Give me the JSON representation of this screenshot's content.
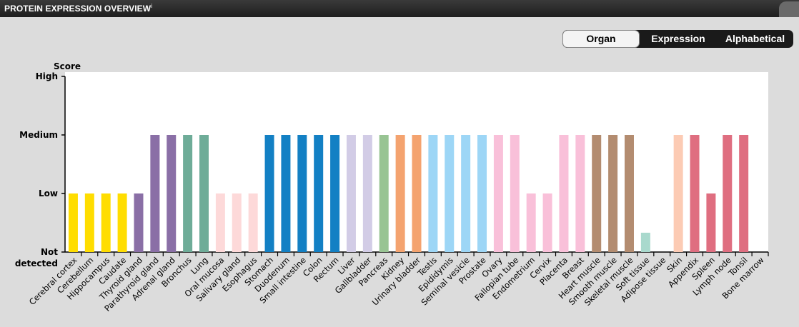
{
  "header": {
    "title": "PROTEIN EXPRESSION OVERVIEW",
    "info_mark": "i"
  },
  "sort_buttons": [
    {
      "label": "Organ",
      "active": true
    },
    {
      "label": "Expression",
      "active": false
    },
    {
      "label": "Alphabetical",
      "active": false
    }
  ],
  "colors": {
    "header_bg": "#262626",
    "page_bg": "#dcdcdc",
    "plot_bg": "#ffffff"
  },
  "chart_data": {
    "type": "bar",
    "title": "",
    "ylabel": "Score",
    "xlabel": "",
    "ytick_labels": [
      "Not detected",
      "Low",
      "Medium",
      "High"
    ],
    "ylim": [
      0,
      3
    ],
    "grid": false,
    "categories": [
      "Cerebral cortex",
      "Cerebellum",
      "Hippocampus",
      "Caudate",
      "Thyroid gland",
      "Parathyroid gland",
      "Adrenal gland",
      "Bronchus",
      "Lung",
      "Oral mucosa",
      "Salivary gland",
      "Esophagus",
      "Stomach",
      "Duodenum",
      "Small intestine",
      "Colon",
      "Rectum",
      "Liver",
      "Gallbladder",
      "Pancreas",
      "Kidney",
      "Urinary bladder",
      "Testis",
      "Epididymis",
      "Seminal vesicle",
      "Prostate",
      "Ovary",
      "Fallopian tube",
      "Endometrium",
      "Cervix",
      "Placenta",
      "Breast",
      "Heart muscle",
      "Smooth muscle",
      "Skeletal muscle",
      "Soft tissue",
      "Adipose tissue",
      "Skin",
      "Appendix",
      "Spleen",
      "Lymph node",
      "Tonsil",
      "Bone marrow"
    ],
    "values": [
      1,
      1,
      1,
      1,
      1,
      2,
      2,
      2,
      2,
      1,
      1,
      1,
      2,
      2,
      2,
      2,
      2,
      2,
      2,
      2,
      2,
      2,
      2,
      2,
      2,
      2,
      2,
      2,
      1,
      1,
      2,
      2,
      2,
      2,
      2,
      0.33,
      0,
      2,
      2,
      1,
      2,
      2,
      0
    ],
    "bar_colors": [
      "#ffdd00",
      "#ffdd00",
      "#ffdd00",
      "#ffdd00",
      "#8a6fa6",
      "#8a6fa6",
      "#8a6fa6",
      "#6eac98",
      "#6eac98",
      "#fdd9d9",
      "#fdd9d9",
      "#fdd9d9",
      "#1380c4",
      "#1380c4",
      "#1380c4",
      "#1380c4",
      "#1380c4",
      "#d2cce6",
      "#d2cce6",
      "#98c493",
      "#f4a36f",
      "#f4a36f",
      "#9dd6f6",
      "#9dd6f6",
      "#9dd6f6",
      "#9dd6f6",
      "#f9c0d9",
      "#f9c0d9",
      "#f9c0d9",
      "#f9c0d9",
      "#f9c0d9",
      "#f9c0d9",
      "#b38c70",
      "#b38c70",
      "#b38c70",
      "#a9d9cd",
      "#fccbb4",
      "#fccbb4",
      "#df6e80",
      "#df6e80",
      "#df6e80",
      "#df6e80",
      "#df6e80"
    ]
  }
}
